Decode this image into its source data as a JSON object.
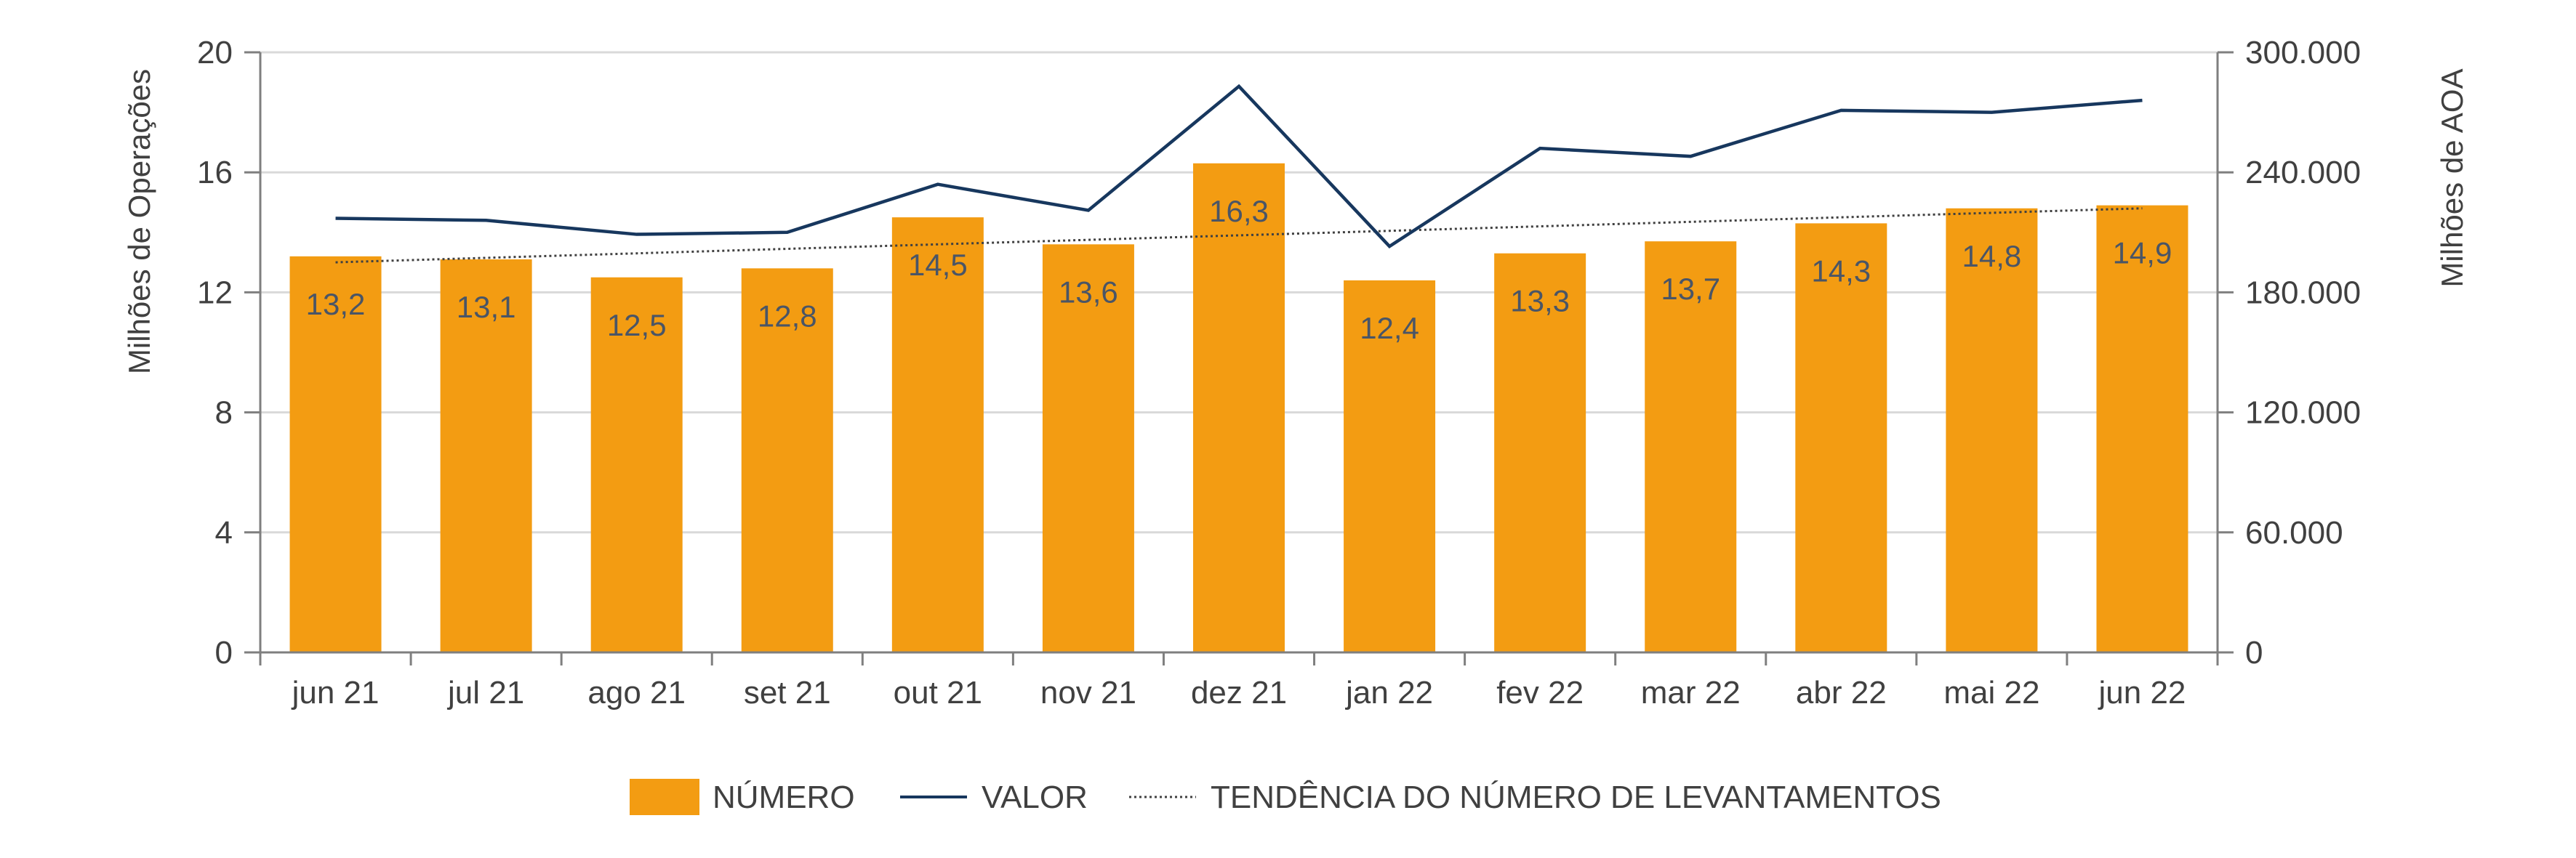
{
  "colors": {
    "bar": "#F39C12",
    "valor_line": "#17375E",
    "trend_line": "#404040",
    "gridline": "#D9D9D9",
    "axis": "#7F7F7F",
    "text": "#404040"
  },
  "chart_data": {
    "type": "bar",
    "categories": [
      "jun 21",
      "jul 21",
      "ago 21",
      "set 21",
      "out 21",
      "nov 21",
      "dez 21",
      "jan 22",
      "fev 22",
      "mar 22",
      "abr 22",
      "mai 22",
      "jun 22"
    ],
    "series": [
      {
        "name": "NÚMERO",
        "type": "bar",
        "axis": "left",
        "values": [
          13.2,
          13.1,
          12.5,
          12.8,
          14.5,
          13.6,
          16.3,
          12.4,
          13.3,
          13.7,
          14.3,
          14.8,
          14.9
        ],
        "labels": [
          "13,2",
          "13,1",
          "12,5",
          "12,8",
          "14,5",
          "13,6",
          "16,3",
          "12,4",
          "13,3",
          "13,7",
          "14,3",
          "14,8",
          "14,9"
        ]
      },
      {
        "name": "VALOR",
        "type": "line",
        "axis": "right",
        "values": [
          217000,
          216000,
          209000,
          210000,
          234000,
          221000,
          283000,
          203000,
          252000,
          248000,
          271000,
          270000,
          276000
        ]
      },
      {
        "name": "TENDÊNCIA DO NÚMERO DE LEVANTAMENTOS",
        "type": "trendline",
        "axis": "left",
        "values": [
          13.0,
          13.15,
          13.3,
          13.45,
          13.6,
          13.75,
          13.9,
          14.05,
          14.2,
          14.35,
          14.5,
          14.65,
          14.8
        ]
      }
    ],
    "y_left": {
      "label": "Milhões de Operações",
      "min": 0,
      "max": 20,
      "ticks": [
        0,
        4,
        8,
        12,
        16,
        20
      ],
      "tick_labels": [
        "0",
        "4",
        "8",
        "12",
        "16",
        "20"
      ]
    },
    "y_right": {
      "label": "Milhões de AOA",
      "min": 0,
      "max": 300000,
      "ticks": [
        0,
        60000,
        120000,
        180000,
        240000,
        300000
      ],
      "tick_labels": [
        "0",
        "60.000",
        "120.000",
        "180.000",
        "240.000",
        "300.000"
      ]
    },
    "grid": true,
    "legend_position": "bottom-center",
    "legend": [
      {
        "label": "NÚMERO",
        "kind": "bar"
      },
      {
        "label": "VALOR",
        "kind": "line"
      },
      {
        "label": "TENDÊNCIA DO NÚMERO DE LEVANTAMENTOS",
        "kind": "dotted"
      }
    ]
  }
}
